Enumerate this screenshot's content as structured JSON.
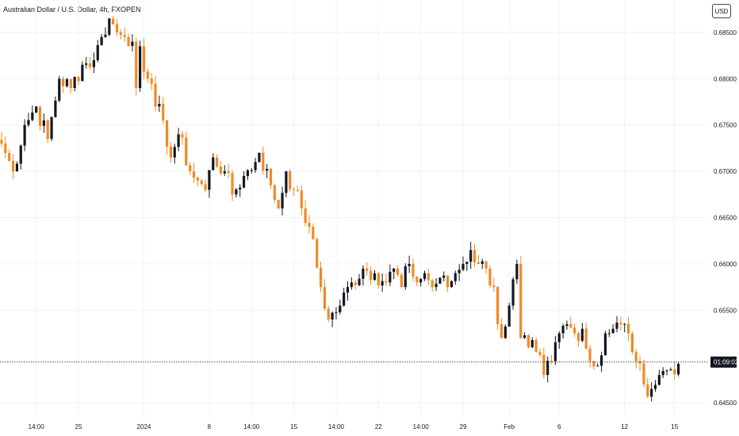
{
  "header": {
    "title": "Australian Dollar / U.S. Dollar, 4h, FXOPEN",
    "currency_button": "USD"
  },
  "countdown": "01:09:02",
  "chart_data": {
    "type": "candlestick",
    "title": "Australian Dollar / U.S. Dollar, 4h, FXOPEN",
    "ylim": [
      0.6433,
      0.6885
    ],
    "y_ticks": [
      "0.68500",
      "0.68000",
      "0.67500",
      "0.67000",
      "0.66500",
      "0.66000",
      "0.65500",
      "0.64500"
    ],
    "y_tick_values": [
      0.685,
      0.68,
      0.675,
      0.67,
      0.665,
      0.66,
      0.655,
      0.645
    ],
    "x_ticks": [
      "14:00",
      "25",
      "2024",
      "8",
      "14:00",
      "15",
      "14:00",
      "22",
      "14:00",
      "29",
      "Feb",
      "6",
      "12",
      "15"
    ],
    "x_tick_bars": [
      9,
      20,
      37,
      54,
      65,
      76,
      87,
      98,
      109,
      120,
      132,
      145,
      162,
      175
    ],
    "current_price": 0.6494,
    "colors": {
      "up": "#131722",
      "down": "#f08a24",
      "grid": "#f0f3fa",
      "current_line": "#131722"
    },
    "anchors": [
      [
        0,
        0.673
      ],
      [
        3,
        0.67
      ],
      [
        6,
        0.675
      ],
      [
        9,
        0.677
      ],
      [
        12,
        0.6735
      ],
      [
        15,
        0.68
      ],
      [
        18,
        0.679
      ],
      [
        21,
        0.6815
      ],
      [
        24,
        0.682
      ],
      [
        26,
        0.6845
      ],
      [
        28,
        0.6865
      ],
      [
        30,
        0.685
      ],
      [
        32,
        0.6845
      ],
      [
        34,
        0.684
      ],
      [
        35,
        0.679
      ],
      [
        36,
        0.6835
      ],
      [
        38,
        0.68
      ],
      [
        40,
        0.677
      ],
      [
        42,
        0.6755
      ],
      [
        44,
        0.6715
      ],
      [
        46,
        0.674
      ],
      [
        49,
        0.67
      ],
      [
        51,
        0.669
      ],
      [
        53,
        0.668
      ],
      [
        55,
        0.6715
      ],
      [
        58,
        0.67
      ],
      [
        60,
        0.6675
      ],
      [
        63,
        0.6695
      ],
      [
        66,
        0.671
      ],
      [
        67,
        0.672
      ],
      [
        70,
        0.6685
      ],
      [
        72,
        0.666
      ],
      [
        74,
        0.67
      ],
      [
        76,
        0.668
      ],
      [
        78,
        0.666
      ],
      [
        80,
        0.664
      ],
      [
        83,
        0.6575
      ],
      [
        85,
        0.654
      ],
      [
        88,
        0.6555
      ],
      [
        91,
        0.658
      ],
      [
        94,
        0.6595
      ],
      [
        97,
        0.659
      ],
      [
        100,
        0.658
      ],
      [
        102,
        0.6595
      ],
      [
        104,
        0.6575
      ],
      [
        106,
        0.66
      ],
      [
        108,
        0.658
      ],
      [
        110,
        0.659
      ],
      [
        112,
        0.6575
      ],
      [
        114,
        0.6585
      ],
      [
        116,
        0.6575
      ],
      [
        118,
        0.659
      ],
      [
        120,
        0.66
      ],
      [
        122,
        0.6615
      ],
      [
        124,
        0.66
      ],
      [
        126,
        0.6595
      ],
      [
        128,
        0.6575
      ],
      [
        129,
        0.6535
      ],
      [
        130,
        0.652
      ],
      [
        132,
        0.6555
      ],
      [
        134,
        0.66
      ],
      [
        135,
        0.652
      ],
      [
        137,
        0.651
      ],
      [
        139,
        0.6505
      ],
      [
        141,
        0.648
      ],
      [
        143,
        0.6495
      ],
      [
        145,
        0.6525
      ],
      [
        147,
        0.6535
      ],
      [
        149,
        0.6525
      ],
      [
        151,
        0.653
      ],
      [
        153,
        0.6495
      ],
      [
        155,
        0.649
      ],
      [
        157,
        0.6525
      ],
      [
        159,
        0.653
      ],
      [
        161,
        0.6535
      ],
      [
        163,
        0.6525
      ],
      [
        165,
        0.6495
      ],
      [
        167,
        0.647
      ],
      [
        169,
        0.6465
      ],
      [
        171,
        0.648
      ],
      [
        173,
        0.6485
      ],
      [
        176,
        0.6492
      ]
    ]
  }
}
